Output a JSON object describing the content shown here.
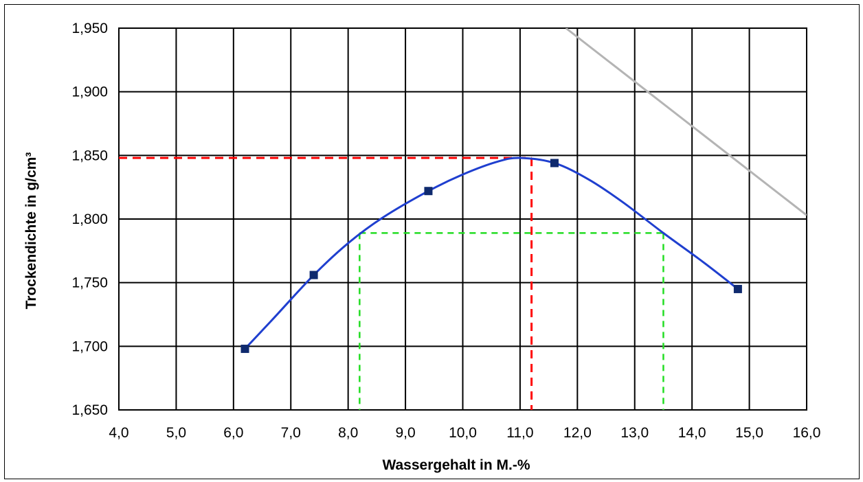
{
  "chart_data": {
    "type": "line",
    "title": "",
    "xlabel": "Wassergehalt in M.-%",
    "ylabel": "Trockendichte in g/cm³",
    "xlim": [
      4.0,
      16.0
    ],
    "ylim": [
      1.65,
      1.95
    ],
    "x_ticks": [
      4,
      5,
      6,
      7,
      8,
      9,
      10,
      11,
      12,
      13,
      14,
      15,
      16
    ],
    "x_tick_labels": [
      "4,0",
      "5,0",
      "6,0",
      "7,0",
      "8,0",
      "9,0",
      "10,0",
      "11,0",
      "12,0",
      "13,0",
      "14,0",
      "15,0",
      "16,0"
    ],
    "y_ticks": [
      1.65,
      1.7,
      1.75,
      1.8,
      1.85,
      1.9,
      1.95
    ],
    "y_tick_labels": [
      "1,650",
      "1,700",
      "1,750",
      "1,800",
      "1,850",
      "1,900",
      "1,950"
    ],
    "grid": true,
    "legend": "none",
    "series": [
      {
        "kind": "measured-points",
        "color": "#0f2a6e",
        "marker": "square",
        "x": [
          6.2,
          7.4,
          9.4,
          11.6,
          14.8
        ],
        "y": [
          1.698,
          1.756,
          1.822,
          1.844,
          1.745
        ]
      },
      {
        "kind": "proctor-curve",
        "color": "#1f3fcf",
        "x": [
          6.2,
          6.7,
          7.4,
          8.0,
          8.6,
          9.4,
          10.0,
          10.6,
          11.0,
          11.6,
          12.2,
          12.8,
          13.5,
          14.2,
          14.8
        ],
        "y": [
          1.698,
          1.722,
          1.756,
          1.781,
          1.801,
          1.822,
          1.835,
          1.845,
          1.848,
          1.844,
          1.831,
          1.813,
          1.789,
          1.766,
          1.745
        ]
      },
      {
        "kind": "saturation-line",
        "color": "#b4b4b4",
        "x": [
          11.8,
          16.0
        ],
        "y": [
          1.95,
          1.803
        ]
      }
    ],
    "annotations": [
      {
        "kind": "max-density-horizontal",
        "color": "#ff0000",
        "x": [
          4.0,
          11.2
        ],
        "y": [
          1.848,
          1.848
        ]
      },
      {
        "kind": "optimum-water-vertical",
        "color": "#ff0000",
        "x": [
          11.2,
          11.2
        ],
        "y": [
          1.848,
          1.65
        ]
      },
      {
        "kind": "range-horizontal",
        "color": "#22dd22",
        "x": [
          8.2,
          13.5
        ],
        "y": [
          1.789,
          1.789
        ]
      },
      {
        "kind": "range-vertical-left",
        "color": "#22dd22",
        "x": [
          8.2,
          8.2
        ],
        "y": [
          1.789,
          1.65
        ]
      },
      {
        "kind": "range-vertical-right",
        "color": "#22dd22",
        "x": [
          13.5,
          13.5
        ],
        "y": [
          1.789,
          1.65
        ]
      }
    ]
  }
}
